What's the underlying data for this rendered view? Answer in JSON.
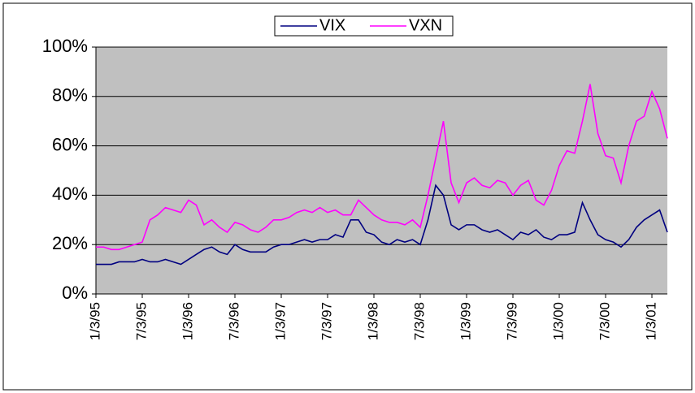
{
  "chart_data": {
    "type": "line",
    "categories": [
      "1/3/95",
      null,
      null,
      null,
      null,
      null,
      "7/3/95",
      null,
      null,
      null,
      null,
      null,
      "1/3/96",
      null,
      null,
      null,
      null,
      null,
      "7/3/96",
      null,
      null,
      null,
      null,
      null,
      "1/3/97",
      null,
      null,
      null,
      null,
      null,
      "7/3/97",
      null,
      null,
      null,
      null,
      null,
      "1/3/98",
      null,
      null,
      null,
      null,
      null,
      "7/3/98",
      null,
      null,
      null,
      null,
      null,
      "1/3/99",
      null,
      null,
      null,
      null,
      null,
      "7/3/99",
      null,
      null,
      null,
      null,
      null,
      "1/3/00",
      null,
      null,
      null,
      null,
      null,
      "7/3/00",
      null,
      null,
      null,
      null,
      null,
      "1/3/01",
      null,
      null
    ],
    "series": [
      {
        "name": "VIX",
        "color": "#000080",
        "values": [
          12,
          12,
          12,
          13,
          13,
          13,
          14,
          13,
          13,
          14,
          13,
          12,
          14,
          16,
          18,
          19,
          17,
          16,
          20,
          18,
          17,
          17,
          17,
          19,
          20,
          20,
          21,
          22,
          21,
          22,
          22,
          24,
          23,
          30,
          30,
          25,
          24,
          21,
          20,
          22,
          21,
          22,
          20,
          30,
          44,
          40,
          28,
          26,
          28,
          28,
          26,
          25,
          26,
          24,
          22,
          25,
          24,
          26,
          23,
          22,
          24,
          24,
          25,
          37,
          30,
          24,
          22,
          21,
          19,
          22,
          27,
          30,
          32,
          34,
          25
        ]
      },
      {
        "name": "VXN",
        "color": "#ff00ff",
        "values": [
          19,
          19,
          18,
          18,
          19,
          20,
          21,
          30,
          32,
          35,
          34,
          33,
          38,
          36,
          28,
          30,
          27,
          25,
          29,
          28,
          26,
          25,
          27,
          30,
          30,
          31,
          33,
          34,
          33,
          35,
          33,
          34,
          32,
          32,
          38,
          35,
          32,
          30,
          29,
          29,
          28,
          30,
          27,
          40,
          55,
          70,
          45,
          37,
          45,
          47,
          44,
          43,
          46,
          45,
          40,
          44,
          46,
          38,
          36,
          42,
          52,
          58,
          57,
          70,
          85,
          65,
          56,
          55,
          45,
          60,
          70,
          72,
          82,
          75,
          63
        ]
      }
    ],
    "ylim": [
      0,
      100
    ],
    "yticks": [
      {
        "value": 0,
        "label": "0%"
      },
      {
        "value": 20,
        "label": "20%"
      },
      {
        "value": 40,
        "label": "40%"
      },
      {
        "value": 60,
        "label": "60%"
      },
      {
        "value": 80,
        "label": "80%"
      },
      {
        "value": 100,
        "label": "100%"
      }
    ],
    "grid": true,
    "legend": "top"
  }
}
